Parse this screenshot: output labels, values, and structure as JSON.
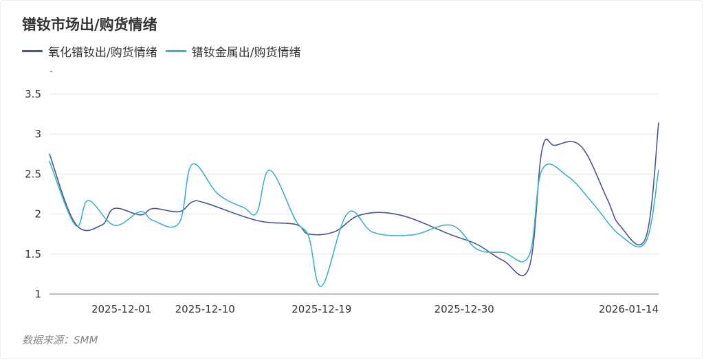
{
  "colors": {
    "oxide": "#4a5591",
    "metal": "#3db1c8",
    "grid": "#e6e6e6",
    "axis": "#999999"
  },
  "chart_data": {
    "type": "line",
    "title": "镨钕市场出/购货情绪",
    "unit": "-",
    "source": "数据来源：SMM",
    "legend_position": "top-left",
    "grid": true,
    "ylim": [
      1,
      3.5
    ],
    "yticks": [
      "1",
      "1.5",
      "2",
      "2.5",
      "3",
      "3.5"
    ],
    "x_tick_labels": [
      "2025-12-01",
      "2025-12-10",
      "2025-12-19",
      "2025-12-30",
      "2026-01-14"
    ],
    "x_tick_dates": [
      "2025-12-01",
      "2025-12-10",
      "2025-12-19",
      "2025-12-30",
      "2026-01-14"
    ],
    "x_range": [
      "2025-11-28",
      "2026-01-14"
    ],
    "series": [
      {
        "name": "氧化镨钕出/购货情绪",
        "color": "#4a5591",
        "points": [
          [
            "2025-11-28",
            2.75
          ],
          [
            "2025-11-30",
            1.88
          ],
          [
            "2025-12-02",
            1.86
          ],
          [
            "2025-12-03",
            2.07
          ],
          [
            "2025-12-05",
            1.99
          ],
          [
            "2025-12-06",
            2.07
          ],
          [
            "2025-12-08",
            2.03
          ],
          [
            "2025-12-09",
            2.15
          ],
          [
            "2025-12-10",
            2.14
          ],
          [
            "2025-12-14",
            1.92
          ],
          [
            "2025-12-17",
            1.87
          ],
          [
            "2025-12-18",
            1.75
          ],
          [
            "2025-12-20",
            1.78
          ],
          [
            "2025-12-22",
            1.99
          ],
          [
            "2025-12-25",
            1.99
          ],
          [
            "2025-12-29",
            1.74
          ],
          [
            "2025-12-31",
            1.62
          ],
          [
            "2026-01-02",
            1.42
          ],
          [
            "2026-01-04",
            1.33
          ],
          [
            "2026-01-05",
            2.8
          ],
          [
            "2026-01-06",
            2.86
          ],
          [
            "2026-01-08",
            2.85
          ],
          [
            "2026-01-10",
            2.2
          ],
          [
            "2026-01-11",
            1.86
          ],
          [
            "2026-01-13",
            1.7
          ],
          [
            "2026-01-14",
            3.14
          ]
        ]
      },
      {
        "name": "镨钕金属出/购货情绪",
        "color": "#3db1c8",
        "points": [
          [
            "2025-11-28",
            2.66
          ],
          [
            "2025-11-30",
            1.86
          ],
          [
            "2025-12-01",
            2.17
          ],
          [
            "2025-12-03",
            1.86
          ],
          [
            "2025-12-05",
            2.03
          ],
          [
            "2025-12-06",
            1.92
          ],
          [
            "2025-12-08",
            1.89
          ],
          [
            "2025-12-09",
            2.62
          ],
          [
            "2025-12-11",
            2.25
          ],
          [
            "2025-12-13",
            2.08
          ],
          [
            "2025-12-14",
            2.02
          ],
          [
            "2025-12-15",
            2.55
          ],
          [
            "2025-12-17",
            1.92
          ],
          [
            "2025-12-18",
            1.72
          ],
          [
            "2025-12-19",
            1.1
          ],
          [
            "2025-12-21",
            2.01
          ],
          [
            "2025-12-23",
            1.77
          ],
          [
            "2025-12-26",
            1.74
          ],
          [
            "2025-12-29",
            1.86
          ],
          [
            "2025-12-31",
            1.56
          ],
          [
            "2026-01-02",
            1.52
          ],
          [
            "2026-01-04",
            1.48
          ],
          [
            "2026-01-05",
            2.55
          ],
          [
            "2026-01-07",
            2.47
          ],
          [
            "2026-01-09",
            2.12
          ],
          [
            "2026-01-11",
            1.74
          ],
          [
            "2026-01-13",
            1.65
          ],
          [
            "2026-01-14",
            2.55
          ]
        ]
      }
    ]
  }
}
